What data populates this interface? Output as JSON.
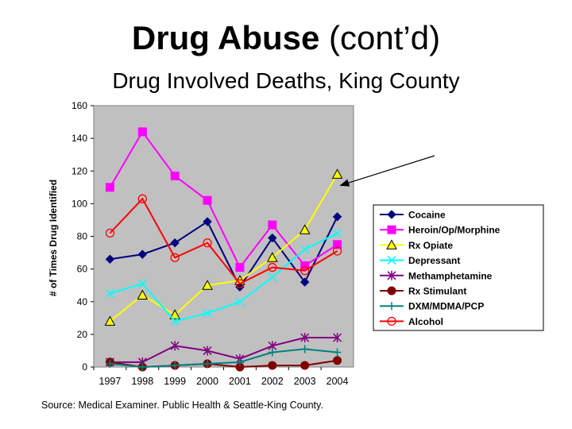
{
  "slide": {
    "title_bold": "Drug Abuse",
    "title_rest": " (cont’d)",
    "subtitle": "Drug Involved Deaths, King County",
    "source": "Source: Medical Examiner. Public Health & Seattle-King County."
  },
  "chart_data": {
    "type": "line",
    "title": "Drug Involved Deaths, King County",
    "xlabel": "",
    "ylabel": "# of Times Drug Identified",
    "ylim": [
      0,
      160
    ],
    "yticks": [
      0,
      20,
      40,
      60,
      80,
      100,
      120,
      140,
      160
    ],
    "categories": [
      "1997",
      "1998",
      "1999",
      "2000",
      "2001",
      "2002",
      "2003",
      "2004"
    ],
    "grid": false,
    "legend_position": "right",
    "annotation": "arrow pointing to Rx Opiate 2004 peak",
    "series": [
      {
        "name": "Cocaine",
        "color": "#000080",
        "marker": "diamond",
        "values": [
          66,
          69,
          76,
          89,
          49,
          79,
          52,
          92
        ]
      },
      {
        "name": "Heroin/Op/Morphine",
        "color": "#ff00ff",
        "marker": "square",
        "values": [
          110,
          144,
          117,
          102,
          61,
          87,
          62,
          75
        ]
      },
      {
        "name": "Rx Opiate",
        "color": "#ffff00",
        "marker": "triangle",
        "values": [
          28,
          44,
          32,
          50,
          53,
          67,
          84,
          118
        ]
      },
      {
        "name": "Depressant",
        "color": "#00ffff",
        "marker": "x",
        "values": [
          45,
          51,
          28,
          33,
          40,
          55,
          72,
          82
        ]
      },
      {
        "name": "Methamphetamine",
        "color": "#800080",
        "marker": "star",
        "values": [
          3,
          3,
          13,
          10,
          5,
          13,
          18,
          18
        ]
      },
      {
        "name": "Rx Stimulant",
        "color": "#800000",
        "marker": "circle-filled",
        "values": [
          3,
          0,
          1,
          2,
          0,
          1,
          1,
          4
        ]
      },
      {
        "name": "DXM/MDMA/PCP",
        "color": "#008080",
        "marker": "plus",
        "values": [
          2,
          0,
          1,
          2,
          3,
          9,
          11,
          9
        ]
      },
      {
        "name": "Alcohol",
        "color": "#ff0000",
        "marker": "circle-open",
        "values": [
          82,
          103,
          67,
          76,
          51,
          61,
          59,
          71
        ]
      }
    ]
  }
}
